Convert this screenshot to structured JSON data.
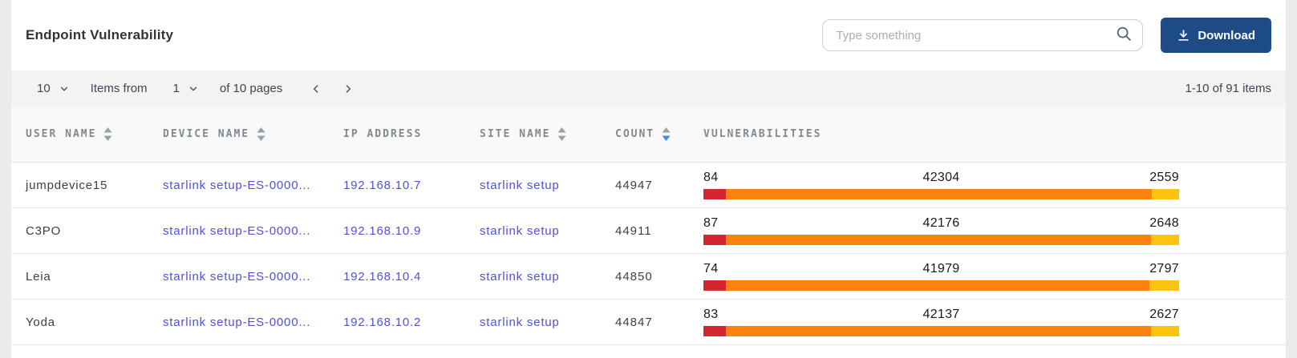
{
  "header": {
    "title": "Endpoint Vulnerability",
    "search_placeholder": "Type something",
    "download_label": "Download"
  },
  "pagination": {
    "page_size": "10",
    "items_from_label": "Items from",
    "current_page": "1",
    "of_pages_label": "of 10 pages",
    "range_label": "1-10 of 91 items"
  },
  "table": {
    "columns": [
      {
        "label": "USER NAME",
        "sortable": true,
        "sort": "none"
      },
      {
        "label": "DEVICE NAME",
        "sortable": true,
        "sort": "none"
      },
      {
        "label": "IP ADDRESS",
        "sortable": false,
        "sort": "none"
      },
      {
        "label": "SITE NAME",
        "sortable": true,
        "sort": "none"
      },
      {
        "label": "COUNT",
        "sortable": true,
        "sort": "desc"
      },
      {
        "label": "VULNERABILITIES",
        "sortable": false,
        "sort": "none"
      }
    ],
    "rows": [
      {
        "user_name": "jumpdevice15",
        "device_name": "starlink setup-ES-0000...",
        "ip_address": "192.168.10.7",
        "site_name": "starlink setup",
        "count": "44947",
        "vulnerabilities": {
          "critical": 84,
          "high": 42304,
          "medium": 2559
        }
      },
      {
        "user_name": "C3PO",
        "device_name": "starlink setup-ES-0000...",
        "ip_address": "192.168.10.9",
        "site_name": "starlink setup",
        "count": "44911",
        "vulnerabilities": {
          "critical": 87,
          "high": 42176,
          "medium": 2648
        }
      },
      {
        "user_name": "Leia",
        "device_name": "starlink setup-ES-0000...",
        "ip_address": "192.168.10.4",
        "site_name": "starlink setup",
        "count": "44850",
        "vulnerabilities": {
          "critical": 74,
          "high": 41979,
          "medium": 2797
        }
      },
      {
        "user_name": "Yoda",
        "device_name": "starlink setup-ES-0000...",
        "ip_address": "192.168.10.2",
        "site_name": "starlink setup",
        "count": "44847",
        "vulnerabilities": {
          "critical": 83,
          "high": 42137,
          "medium": 2627
        }
      }
    ]
  },
  "colors": {
    "severity_critical": "#d22730",
    "severity_high": "#fb820c",
    "severity_medium": "#fcc40f",
    "link": "#5050dd",
    "download_button_bg": "#1d4b85",
    "sort_inactive": "#9aa1a9",
    "sort_active": "#4285f4",
    "chevron": "#49505c"
  },
  "icons": {
    "search": "search-icon",
    "download": "download-icon",
    "chevron_down": "chevron-down-icon",
    "chevron_left": "chevron-left-icon",
    "chevron_right": "chevron-right-icon",
    "sort": "sort-icon"
  }
}
